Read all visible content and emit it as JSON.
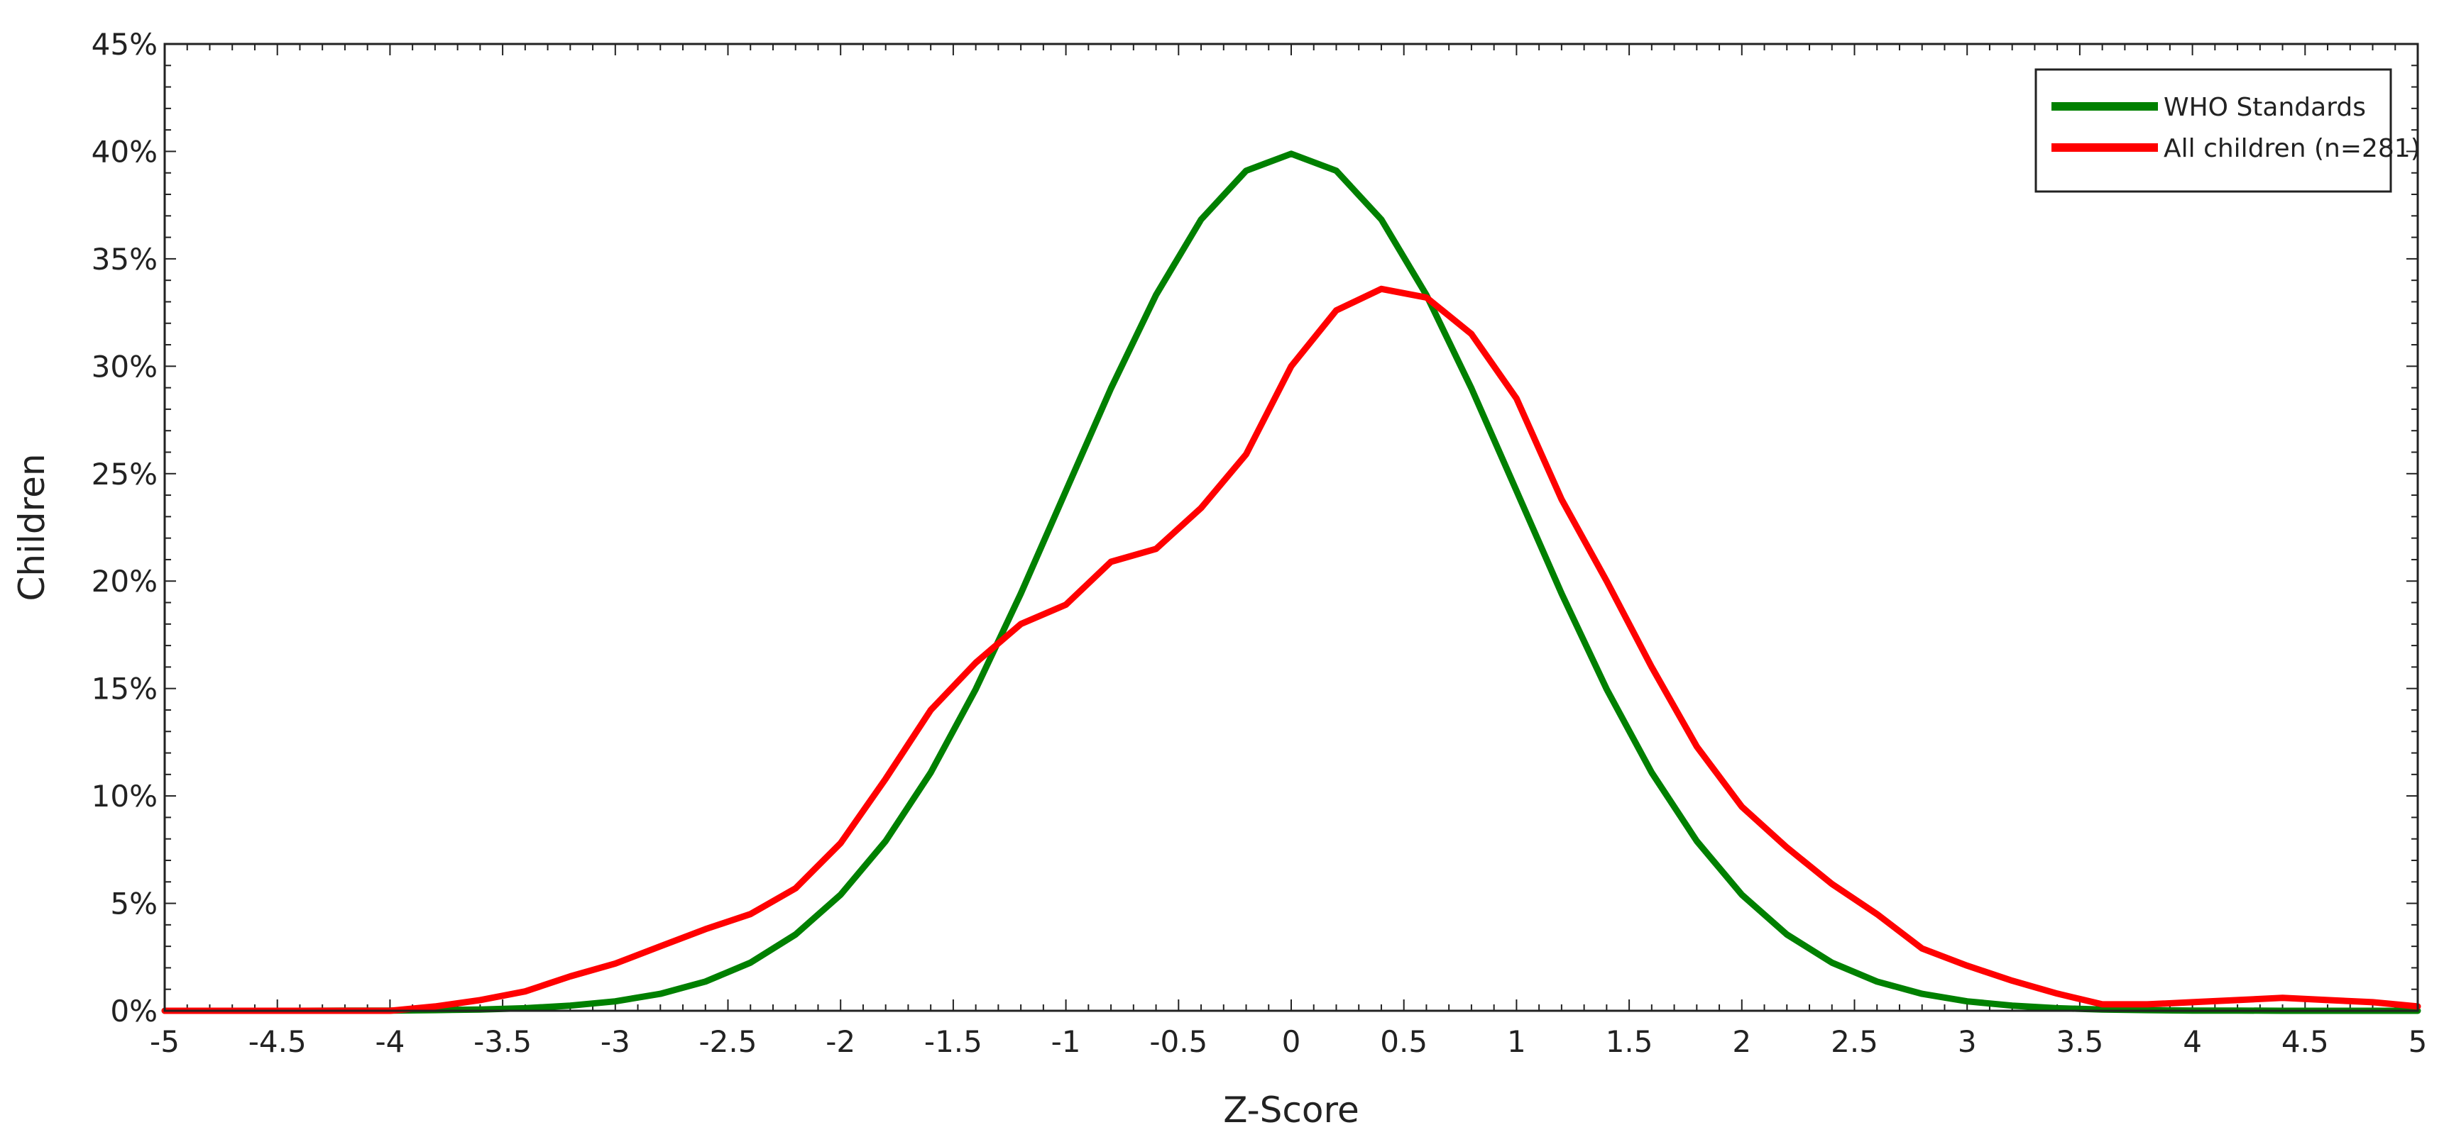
{
  "chart_data": {
    "type": "line",
    "title": "",
    "xlabel": "Z-Score",
    "ylabel": "Children",
    "xlim": [
      -5,
      5
    ],
    "ylim": [
      0,
      45
    ],
    "grid": false,
    "legend_position": "top-right",
    "x_tick_labels": [
      "-5",
      "-4.5",
      "-4",
      "-3.5",
      "-3",
      "-2.5",
      "-2",
      "-1.5",
      "-1",
      "-0.5",
      "0",
      "0.5",
      "1",
      "1.5",
      "2",
      "2.5",
      "3",
      "3.5",
      "4",
      "4.5",
      "5"
    ],
    "y_tick_labels": [
      "0%",
      "5%",
      "10%",
      "15%",
      "20%",
      "25%",
      "30%",
      "35%",
      "40%",
      "45%"
    ],
    "series": [
      {
        "name": "WHO Standards",
        "color": "#008000",
        "x": [
          -5.0,
          -4.8,
          -4.6,
          -4.4,
          -4.2,
          -4.0,
          -3.8,
          -3.6,
          -3.4,
          -3.2,
          -3.0,
          -2.8,
          -2.6,
          -2.4,
          -2.2,
          -2.0,
          -1.8,
          -1.6,
          -1.4,
          -1.2,
          -1.0,
          -0.8,
          -0.6,
          -0.4,
          -0.2,
          0.0,
          0.2,
          0.4,
          0.6,
          0.8,
          1.0,
          1.2,
          1.4,
          1.6,
          1.8,
          2.0,
          2.2,
          2.4,
          2.6,
          2.8,
          3.0,
          3.2,
          3.4,
          3.6,
          3.8,
          4.0,
          4.2,
          4.4,
          4.6,
          4.8,
          5.0
        ],
        "y": [
          0.0,
          0.0,
          0.0,
          0.0,
          0.01,
          0.01,
          0.03,
          0.06,
          0.12,
          0.24,
          0.44,
          0.79,
          1.36,
          2.24,
          3.55,
          5.4,
          7.9,
          11.09,
          14.97,
          19.42,
          24.2,
          28.97,
          33.32,
          36.83,
          39.1,
          39.89,
          39.1,
          36.83,
          33.32,
          28.97,
          24.2,
          19.42,
          14.97,
          11.09,
          7.9,
          5.4,
          3.55,
          2.24,
          1.36,
          0.79,
          0.44,
          0.24,
          0.12,
          0.06,
          0.03,
          0.01,
          0.01,
          0.0,
          0.0,
          0.0,
          0.0
        ]
      },
      {
        "name": "All children (n=281)",
        "color": "#ff0000",
        "x": [
          -5.0,
          -4.0,
          -3.8,
          -3.6,
          -3.4,
          -3.2,
          -3.0,
          -2.8,
          -2.6,
          -2.4,
          -2.2,
          -2.0,
          -1.8,
          -1.6,
          -1.4,
          -1.2,
          -1.0,
          -0.8,
          -0.6,
          -0.4,
          -0.2,
          0.0,
          0.2,
          0.4,
          0.6,
          0.8,
          1.0,
          1.2,
          1.4,
          1.6,
          1.8,
          2.0,
          2.2,
          2.4,
          2.6,
          2.8,
          3.0,
          3.2,
          3.4,
          3.6,
          3.8,
          4.0,
          4.2,
          4.4,
          4.6,
          4.8,
          5.0
        ],
        "y": [
          0.0,
          0.0,
          0.2,
          0.5,
          0.9,
          1.6,
          2.2,
          3.0,
          3.8,
          4.5,
          5.7,
          7.8,
          10.8,
          14.0,
          16.2,
          18.0,
          18.9,
          20.9,
          21.5,
          23.4,
          25.9,
          30.0,
          32.6,
          33.6,
          33.2,
          31.5,
          28.5,
          23.8,
          20.0,
          16.0,
          12.3,
          9.5,
          7.6,
          5.9,
          4.5,
          2.9,
          2.1,
          1.4,
          0.8,
          0.3,
          0.3,
          0.4,
          0.5,
          0.6,
          0.5,
          0.4,
          0.2
        ]
      }
    ]
  }
}
